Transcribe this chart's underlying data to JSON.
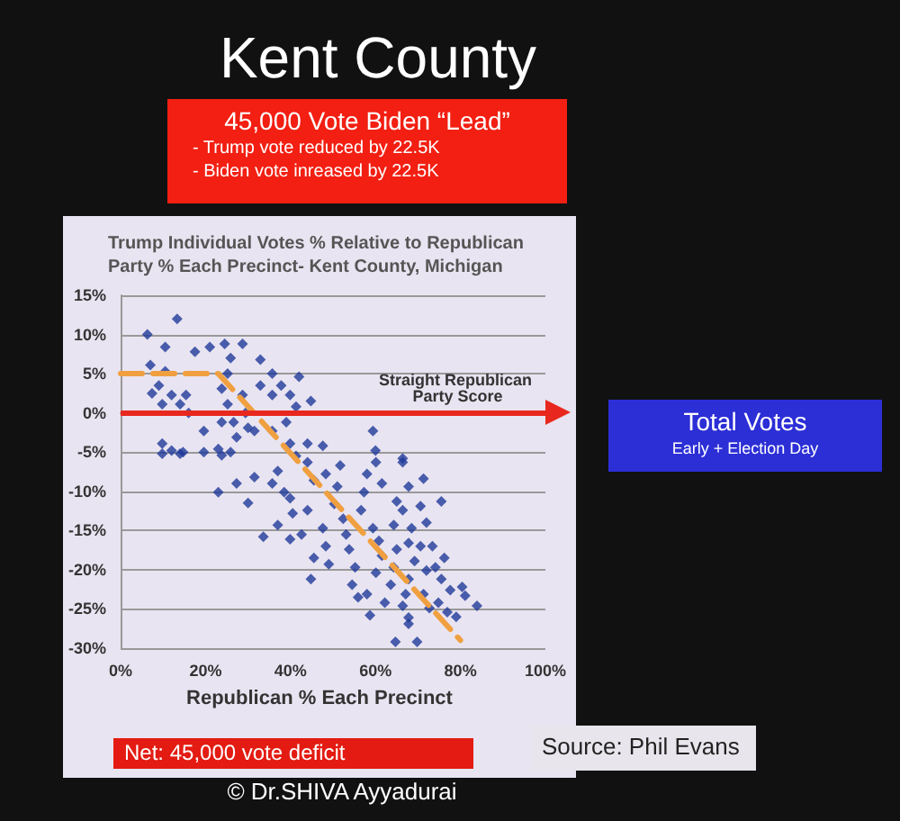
{
  "chart_data": {
    "type": "scatter",
    "title": "Kent County",
    "subtitle": "Trump Individual Votes % Relative to Republican Party % Each Precinct- Kent County, Michigan",
    "xlabel": "Republican % Each Precinct",
    "annotations": [
      "45,000 Vote Biden “Lead”",
      "-     Trump vote reduced by 22.5K",
      "-     Biden vote inreased by 22.5K",
      "Total Votes",
      "Early + Election Day",
      "Net:  45,000 vote deficit",
      "Source: Phil Evans",
      "© Dr.SHIVA Ayyadurai"
    ],
    "series": [
      {
        "type": "scatter",
        "color": "#1f3a9a",
        "marker": "diamond",
        "x": [
          6.3,
          13.3,
          7,
          10.5,
          10.5,
          9,
          7.4,
          12,
          9.8,
          14,
          15.4,
          16,
          9.8,
          12,
          14.7,
          17.5,
          21,
          24.5,
          28.7,
          25.9,
          25.2,
          23.8,
          25.2,
          23.8,
          26.6,
          28.7,
          29.4,
          30,
          27.3,
          25.9,
          19.6,
          19.6,
          23,
          32.9,
          35.7,
          32.9,
          35.7,
          37.8,
          42,
          39.9,
          41.3,
          44.8,
          39,
          35.7,
          31.5,
          44,
          39.9,
          59.4,
          60,
          47.6,
          66.4,
          9.8,
          14,
          23.8,
          23,
          30,
          31.5,
          27.3,
          33.6,
          37,
          35.7,
          37,
          38.5,
          39.9,
          40.5,
          39.9,
          42.6,
          41.3,
          44,
          45.5,
          44,
          45.5,
          44.8,
          47.6,
          48.3,
          49,
          48.3,
          50.3,
          51,
          51.7,
          52.4,
          53.1,
          53.8,
          55.2,
          54.5,
          55.9,
          56.6,
          57.3,
          58,
          60.1,
          61.5,
          59.4,
          60.8,
          61.5,
          60.1,
          58,
          58.7,
          62.2,
          63.6,
          64.3,
          65,
          64.3,
          65,
          66.4,
          66.4,
          67.8,
          68.5,
          67.8,
          69.2,
          67.8,
          67.1,
          66.4,
          67.8,
          64.7,
          69.8,
          67.8,
          70.6,
          71.3,
          72,
          70.6,
          72,
          71.3,
          72.7,
          74.1,
          73.4,
          75.5,
          76.2,
          75.5,
          76.9,
          77.6,
          80.4,
          81.1,
          83.9,
          79,
          74.8
        ],
        "values": [
          10,
          12,
          6.1,
          8.4,
          5.3,
          3.5,
          2.5,
          2.3,
          1.1,
          1.1,
          2.3,
          0,
          -3.9,
          -4.8,
          -5,
          7.8,
          8.4,
          8.8,
          8.8,
          7,
          5,
          3.1,
          1.1,
          -1.2,
          -1.2,
          2.3,
          0,
          -1.9,
          -3.1,
          -5,
          -2.3,
          -5,
          -4.6,
          6.8,
          5,
          3.5,
          2.3,
          3.5,
          4.6,
          2.3,
          0.8,
          1.5,
          -1.2,
          -2.3,
          -2.3,
          -3.9,
          -3.9,
          -2.3,
          -4.8,
          -4.2,
          -5.8,
          -5.2,
          -5.2,
          -5.4,
          -10.1,
          -11.5,
          -8.2,
          -9,
          -15.8,
          -14.3,
          -9,
          -7.4,
          -10.1,
          -10.9,
          -12.8,
          -16.1,
          -15.5,
          -5.5,
          -6.3,
          -8.6,
          -12.4,
          -18.5,
          -21.2,
          -14.7,
          -17,
          -19.3,
          -7.8,
          -11.6,
          -9.4,
          -6.7,
          -13.5,
          -15.5,
          -17.4,
          -19.7,
          -21.9,
          -23.5,
          -12.4,
          -10.1,
          -7.8,
          -6.3,
          -9,
          -14.7,
          -16.3,
          -18.2,
          -20.4,
          -23.1,
          -25.8,
          -24.2,
          -21.9,
          -19.7,
          -17.4,
          -14.3,
          -11.3,
          -12.4,
          -6.3,
          -9.4,
          -14.7,
          -16.6,
          -18.9,
          -21.2,
          -23.1,
          -24.6,
          -26.1,
          -29.2,
          -29.2,
          -26.9,
          -11.9,
          -8.4,
          -14,
          -17,
          -20.1,
          -23.1,
          -24.9,
          -19.7,
          -17,
          -11.3,
          -18.5,
          -21.2,
          -25.4,
          -22.6,
          -22.2,
          -23.3,
          -24.6,
          -26,
          -24.2
        ]
      },
      {
        "type": "line",
        "color": "#f0a040",
        "line_style": "dashed",
        "marker": "none",
        "x": [
          0,
          23,
          80
        ],
        "values": [
          5,
          5,
          -29
        ]
      }
    ],
    "xlim": [
      0,
      100
    ],
    "xticks": [
      {
        "value": 0,
        "label": "0%"
      },
      {
        "value": 20,
        "label": "20%"
      },
      {
        "value": 40,
        "label": "40%"
      },
      {
        "value": 60,
        "label": "60%"
      },
      {
        "value": 80,
        "label": "80%"
      },
      {
        "value": 100,
        "label": "100%"
      }
    ],
    "ylim": [
      -30,
      15
    ],
    "yticks": [
      {
        "value": -30,
        "label": "-30%"
      },
      {
        "value": -25,
        "label": "-25%"
      },
      {
        "value": -20,
        "label": "-20%"
      },
      {
        "value": -15,
        "label": "-15%"
      },
      {
        "value": -10,
        "label": "-10%"
      },
      {
        "value": -5,
        "label": "-5%"
      },
      {
        "value": 0,
        "label": "0%"
      },
      {
        "value": 5,
        "label": "5%"
      },
      {
        "value": 10,
        "label": "10%"
      },
      {
        "value": 15,
        "label": "15%"
      }
    ],
    "grid": "y",
    "ref_lines": [
      {
        "axis": "y",
        "value": 0,
        "label": "Straight Republican Party Score",
        "color": "#e8281e"
      }
    ]
  }
}
